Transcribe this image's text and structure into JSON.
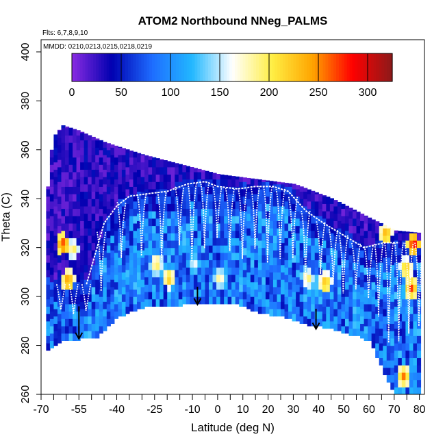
{
  "chart_data": {
    "type": "heatmap",
    "title": "ATOM2 Northbound NNeg_PALMS",
    "subtitle_flights": "Flts: 6,7,8,9,10",
    "subtitle_dates": "MMDD: 0210,0213,0215,0218,0219",
    "xlabel": "Latitude (deg N)",
    "ylabel": "Theta (C)",
    "xlim": [
      -70,
      82
    ],
    "ylim": [
      260,
      405
    ],
    "x_major_ticks": [
      -70,
      -55,
      -40,
      -25,
      -10,
      0,
      10,
      20,
      30,
      40,
      50,
      60,
      70,
      80
    ],
    "x_tick_labels": [
      "-70",
      "-55",
      "-40",
      "-25",
      "-10",
      "0",
      "10",
      "20",
      "30",
      "40",
      "50",
      "60",
      "70",
      "80"
    ],
    "x_minor_ticks": [
      -65,
      -60,
      -50,
      -45,
      -35,
      -30,
      -20,
      -15,
      -5,
      5,
      15,
      25,
      35,
      45,
      55,
      65,
      75
    ],
    "y_ticks": [
      260,
      280,
      300,
      320,
      340,
      360,
      380,
      400
    ],
    "y_tick_labels": [
      "260",
      "280",
      "300",
      "320",
      "340",
      "360",
      "380",
      "400"
    ],
    "colorbar": {
      "range": [
        0,
        325
      ],
      "tick_values": [
        0,
        50,
        100,
        150,
        200,
        250,
        300
      ],
      "tick_labels": [
        "0",
        "50",
        "100",
        "150",
        "200",
        "250",
        "300"
      ],
      "colors": [
        "#8a2be2",
        "#0000b0",
        "#1e6cff",
        "#22b8ff",
        "#ffffff",
        "#ffee44",
        "#ffa500",
        "#ff0000",
        "#8b1a1a"
      ]
    },
    "lower_boundary": [
      {
        "lat": -68,
        "theta": 278
      },
      {
        "lat": -62,
        "theta": 282
      },
      {
        "lat": -55,
        "theta": 283
      },
      {
        "lat": -48,
        "theta": 284
      },
      {
        "lat": -40,
        "theta": 292
      },
      {
        "lat": -30,
        "theta": 296
      },
      {
        "lat": -15,
        "theta": 297
      },
      {
        "lat": -8,
        "theta": 297
      },
      {
        "lat": 0,
        "theta": 298
      },
      {
        "lat": 8,
        "theta": 297
      },
      {
        "lat": 15,
        "theta": 294
      },
      {
        "lat": 25,
        "theta": 292
      },
      {
        "lat": 35,
        "theta": 289
      },
      {
        "lat": 45,
        "theta": 287
      },
      {
        "lat": 55,
        "theta": 284
      },
      {
        "lat": 60,
        "theta": 282
      },
      {
        "lat": 66,
        "theta": 267
      },
      {
        "lat": 70,
        "theta": 260
      }
    ],
    "upper_boundary": [
      {
        "lat": -68,
        "theta": 345
      },
      {
        "lat": -66,
        "theta": 365
      },
      {
        "lat": -62,
        "theta": 370
      },
      {
        "lat": -56,
        "theta": 368
      },
      {
        "lat": -45,
        "theta": 363
      },
      {
        "lat": -30,
        "theta": 358
      },
      {
        "lat": -15,
        "theta": 354
      },
      {
        "lat": 0,
        "theta": 350
      },
      {
        "lat": 15,
        "theta": 348
      },
      {
        "lat": 30,
        "theta": 346
      },
      {
        "lat": 45,
        "theta": 340
      },
      {
        "lat": 60,
        "theta": 332
      },
      {
        "lat": 70,
        "theta": 327
      },
      {
        "lat": 80,
        "theta": 326
      }
    ],
    "tropopause_line": [
      {
        "lat": -52,
        "theta": 305
      },
      {
        "lat": -45,
        "theta": 330
      },
      {
        "lat": -40,
        "theta": 337
      },
      {
        "lat": -35,
        "theta": 341
      },
      {
        "lat": -28,
        "theta": 342
      },
      {
        "lat": -20,
        "theta": 343
      },
      {
        "lat": -12,
        "theta": 346
      },
      {
        "lat": -5,
        "theta": 347
      },
      {
        "lat": 0,
        "theta": 345
      },
      {
        "lat": 8,
        "theta": 344
      },
      {
        "lat": 15,
        "theta": 345
      },
      {
        "lat": 22,
        "theta": 345
      },
      {
        "lat": 28,
        "theta": 343
      },
      {
        "lat": 35,
        "theta": 335
      },
      {
        "lat": 42,
        "theta": 330
      },
      {
        "lat": 50,
        "theta": 325
      },
      {
        "lat": 58,
        "theta": 320
      },
      {
        "lat": 66,
        "theta": 322
      },
      {
        "lat": 72,
        "theta": 322
      }
    ],
    "profile_latitudes": [
      -62,
      -57,
      -52,
      -46,
      -38,
      -30,
      -22,
      -15,
      -10,
      -5,
      0,
      5,
      10,
      15,
      20,
      25,
      30,
      35,
      41,
      46,
      50,
      55,
      60,
      64,
      68,
      72,
      76,
      80
    ],
    "profile_depth": [
      0.45,
      0.55,
      0.5,
      0.6,
      0.5,
      0.55,
      0.6,
      0.5,
      0.65,
      0.55,
      0.45,
      0.55,
      0.6,
      0.5,
      0.6,
      0.55,
      0.5,
      0.6,
      0.5,
      0.55,
      0.6,
      0.5,
      0.55,
      0.6,
      0.7,
      0.65,
      0.6,
      0.55
    ],
    "hot_regions": [
      {
        "lat": -62,
        "theta": 320,
        "value": 285
      },
      {
        "lat": -60,
        "theta": 305,
        "value": 265
      },
      {
        "lat": -58,
        "theta": 318,
        "value": 210
      },
      {
        "lat": -25,
        "theta": 312,
        "value": 215
      },
      {
        "lat": -20,
        "theta": 306,
        "value": 235
      },
      {
        "lat": -10,
        "theta": 312,
        "value": 170
      },
      {
        "lat": 0,
        "theta": 306,
        "value": 195
      },
      {
        "lat": 35,
        "theta": 306,
        "value": 205
      },
      {
        "lat": 42,
        "theta": 304,
        "value": 245
      },
      {
        "lat": 66,
        "theta": 324,
        "value": 255
      },
      {
        "lat": 74,
        "theta": 310,
        "value": 240
      },
      {
        "lat": 76,
        "theta": 302,
        "value": 270
      },
      {
        "lat": 77,
        "theta": 320,
        "value": 300
      },
      {
        "lat": 73,
        "theta": 266,
        "value": 255
      }
    ],
    "arrows": [
      {
        "lat": -55,
        "theta_top": 296,
        "theta_tip": 283
      },
      {
        "lat": -8,
        "theta_top": 304,
        "theta_tip": 297
      },
      {
        "lat": 39,
        "theta_top": 295,
        "theta_tip": 287
      }
    ]
  }
}
